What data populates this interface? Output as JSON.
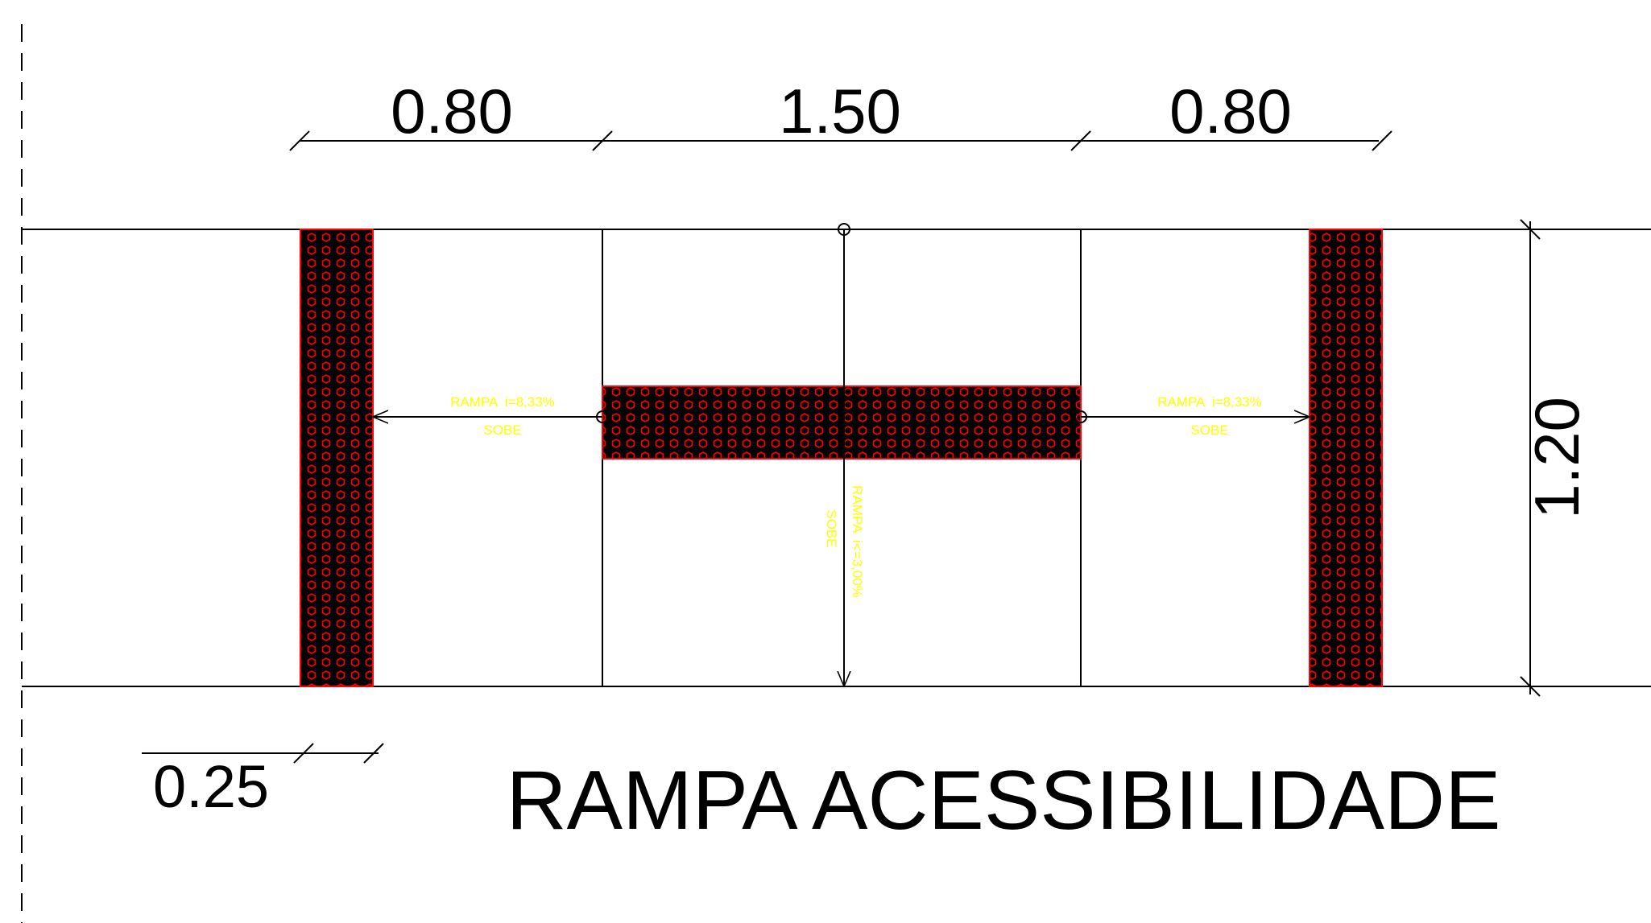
{
  "title": "RAMPA ACESSIBILIDADE",
  "dimensions": {
    "left_width": "0.80",
    "center_width": "1.50",
    "right_width": "0.80",
    "height": "1.20",
    "tactile_band": "0.25"
  },
  "ramps": {
    "left": {
      "slope": "RAMPA  i=8,33%",
      "direction": "SOBE"
    },
    "right": {
      "slope": "RAMPA  i=8,33%",
      "direction": "SOBE"
    },
    "center": {
      "slope": "RAMPA  i<=3,00%",
      "direction": "SOBE"
    }
  },
  "colors": {
    "line": "#000000",
    "tactile_fill": "#000000",
    "tactile_pattern": "#ff0000",
    "annotation": "#ffff00",
    "background": "#ffffff"
  }
}
